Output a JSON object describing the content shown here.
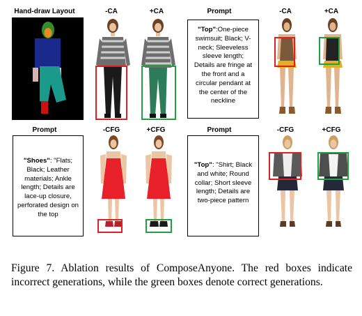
{
  "headers": {
    "layout": "Hand-draw Layout",
    "r1_minus": "-CA",
    "r1_plus": "+CA",
    "r1_prompt": "Prompt",
    "r1_minus2": "-CA",
    "r1_plus2": "+CA",
    "r2_prompt": "Prompt",
    "r2_minus": "-CFG",
    "r2_plus": "+CFG",
    "r2_prompt2": "Prompt",
    "r2_minus2": "-CFG",
    "r2_plus2": "+CFG"
  },
  "prompts": {
    "top1_key": "\"Top\"",
    "top1_text": ":One-piece swimsuit; Black; V-neck; Sleeveless sleeve length; Details are fringe at the front and a circular pendant at the center of the neckline",
    "shoes_key": "\"Shoes\"",
    "shoes_text": ": \"Flats; Black; Leather materials; Ankle length; Details are lace-up closure, perforated design on the top",
    "top2_key": "\"Top\"",
    "top2_text": ": \"Shirt; Black and white; Round collar; Short sleeve length; Details are two-piece pattern"
  },
  "caption": "Figure 7. Ablation results of ComposeAnyone. The red boxes indicate incorrect generations, while the green boxes denote correct generations.",
  "colors": {
    "wrong_box": "#e02020",
    "correct_box": "#20a040"
  }
}
